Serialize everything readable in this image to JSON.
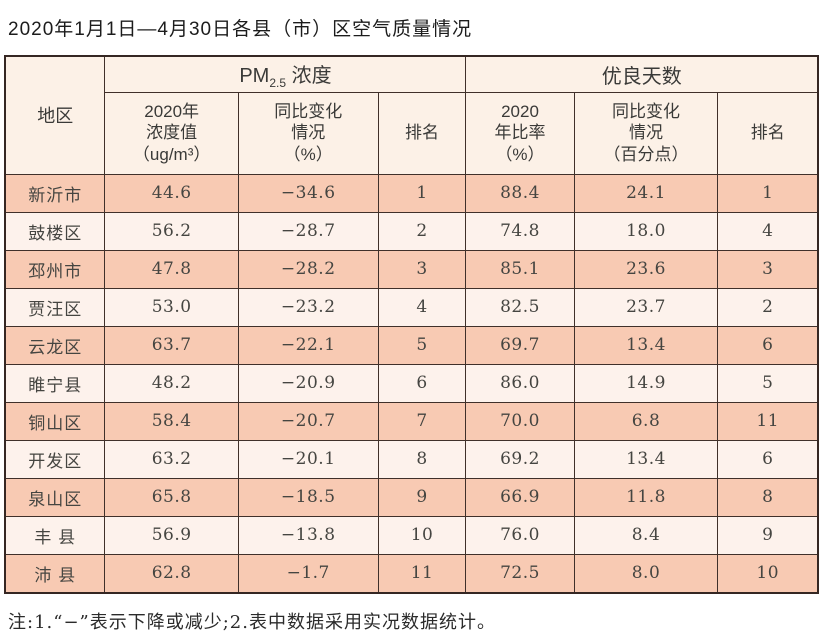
{
  "page": {
    "title": "2020年1月1日—4月30日各县（市）区空气质量情况",
    "footnote": "注:1.“−”表示下降或减少;2.表中数据采用实况数据统计。"
  },
  "table": {
    "header": {
      "region": "地区",
      "pm_group": {
        "prefix": "PM",
        "sub": "2.5",
        "suffix": " 浓度"
      },
      "good_days_group": "优良天数",
      "pm_value": {
        "line1": "2020年",
        "line2": "浓度值",
        "line3": "（ug/m³）"
      },
      "pm_change": {
        "line1": "同比变化",
        "line2": "情况",
        "line3": "（%）"
      },
      "pm_rank": "排名",
      "gd_ratio": {
        "line1": "2020",
        "line2": "年比率",
        "line3": "（%）"
      },
      "gd_change": {
        "line1": "同比变化",
        "line2": "情况",
        "line3": "（百分点）"
      },
      "gd_rank": "排名"
    },
    "rows": [
      {
        "region": "新沂市",
        "pm_value": "44.6",
        "pm_change": "−34.6",
        "pm_rank": "1",
        "gd_ratio": "88.4",
        "gd_change": "24.1",
        "gd_rank": "1"
      },
      {
        "region": "鼓楼区",
        "pm_value": "56.2",
        "pm_change": "−28.7",
        "pm_rank": "2",
        "gd_ratio": "74.8",
        "gd_change": "18.0",
        "gd_rank": "4"
      },
      {
        "region": "邳州市",
        "pm_value": "47.8",
        "pm_change": "−28.2",
        "pm_rank": "3",
        "gd_ratio": "85.1",
        "gd_change": "23.6",
        "gd_rank": "3"
      },
      {
        "region": "贾汪区",
        "pm_value": "53.0",
        "pm_change": "−23.2",
        "pm_rank": "4",
        "gd_ratio": "82.5",
        "gd_change": "23.7",
        "gd_rank": "2"
      },
      {
        "region": "云龙区",
        "pm_value": "63.7",
        "pm_change": "−22.1",
        "pm_rank": "5",
        "gd_ratio": "69.7",
        "gd_change": "13.4",
        "gd_rank": "6"
      },
      {
        "region": "睢宁县",
        "pm_value": "48.2",
        "pm_change": "−20.9",
        "pm_rank": "6",
        "gd_ratio": "86.0",
        "gd_change": "14.9",
        "gd_rank": "5"
      },
      {
        "region": "铜山区",
        "pm_value": "58.4",
        "pm_change": "−20.7",
        "pm_rank": "7",
        "gd_ratio": "70.0",
        "gd_change": "6.8",
        "gd_rank": "11"
      },
      {
        "region": "开发区",
        "pm_value": "63.2",
        "pm_change": "−20.1",
        "pm_rank": "8",
        "gd_ratio": "69.2",
        "gd_change": "13.4",
        "gd_rank": "6"
      },
      {
        "region": "泉山区",
        "pm_value": "65.8",
        "pm_change": "−18.5",
        "pm_rank": "9",
        "gd_ratio": "66.9",
        "gd_change": "11.8",
        "gd_rank": "8"
      },
      {
        "region": "丰 县",
        "pm_value": "56.9",
        "pm_change": "−13.8",
        "pm_rank": "10",
        "gd_ratio": "76.0",
        "gd_change": "8.4",
        "gd_rank": "9"
      },
      {
        "region": "沛 县",
        "pm_value": "62.8",
        "pm_change": "−1.7",
        "pm_rank": "11",
        "gd_ratio": "72.5",
        "gd_change": "8.0",
        "gd_rank": "10"
      }
    ]
  },
  "colors": {
    "row_odd_bg": "#f8cab3",
    "row_even_bg": "#fdf2ec",
    "header_bg": "#fcf1e7",
    "border": "#40302a"
  }
}
